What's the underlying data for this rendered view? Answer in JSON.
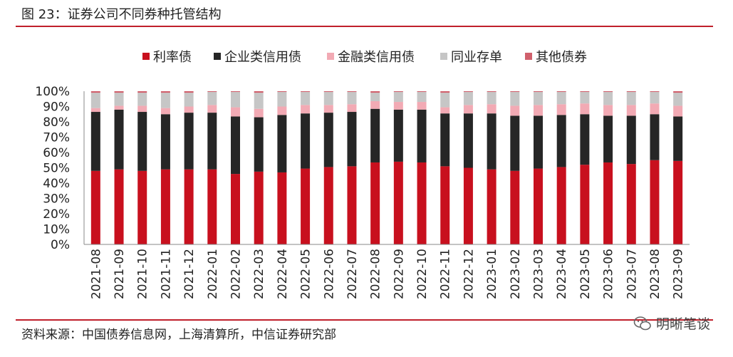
{
  "header": {
    "title": "图 23：证券公司不同券种托管结构"
  },
  "footer": {
    "source": "资料来源：中国债券信息网，上海清算所，中信证券研究部",
    "watermark": "明晰笔谈"
  },
  "colors": {
    "利率债": "#c8101e",
    "企业类信用债": "#262626",
    "金融类信用债": "#f2aab4",
    "同业存单": "#c6c6c6",
    "其他债券": "#d0606c"
  },
  "chart_data": {
    "type": "bar",
    "stacked": true,
    "title": "",
    "xlabel": "",
    "ylabel": "",
    "ylim": [
      0,
      100
    ],
    "y_ticks": [
      "0%",
      "10%",
      "20%",
      "30%",
      "40%",
      "50%",
      "60%",
      "70%",
      "80%",
      "90%",
      "100%"
    ],
    "legend_position": "top",
    "categories": [
      "2021-08",
      "2021-09",
      "2021-10",
      "2021-11",
      "2021-12",
      "2022-01",
      "2022-02",
      "2022-03",
      "2022-04",
      "2022-05",
      "2022-06",
      "2022-07",
      "2022-08",
      "2022-09",
      "2022-10",
      "2022-11",
      "2022-12",
      "2023-01",
      "2023-02",
      "2023-03",
      "2023-04",
      "2023-05",
      "2023-06",
      "2023-07",
      "2023-08",
      "2023-09"
    ],
    "series": [
      {
        "name": "利率债",
        "values": [
          48,
          49,
          48,
          49,
          49,
          49,
          46,
          47.5,
          47,
          49.5,
          50.5,
          51,
          53.5,
          54,
          53.5,
          51,
          50,
          49,
          48,
          49.5,
          50.5,
          52,
          53.5,
          52.5,
          55,
          54.5
        ]
      },
      {
        "name": "企业类信用债",
        "values": [
          38.5,
          39,
          38.5,
          36,
          37,
          37,
          37.5,
          35.5,
          37.5,
          36,
          35.5,
          35.5,
          35,
          34,
          34.5,
          34.5,
          35.5,
          36.5,
          36,
          34.5,
          34,
          33,
          30.5,
          31.5,
          30,
          29
        ]
      },
      {
        "name": "金融类信用债",
        "values": [
          2.5,
          2.5,
          4,
          4,
          4,
          5,
          6,
          5.5,
          5.5,
          5.5,
          5,
          5,
          5,
          5,
          5,
          4,
          5.5,
          6,
          6.5,
          7,
          7,
          7,
          7,
          7,
          7,
          7
        ]
      },
      {
        "name": "同业存单",
        "values": [
          10,
          8.5,
          8.5,
          10,
          9,
          8.5,
          10,
          10.5,
          9.5,
          8.5,
          8.5,
          8,
          5.5,
          6.5,
          6.5,
          9.5,
          8.5,
          8,
          9,
          8.5,
          8,
          7.5,
          8.5,
          8.5,
          7.5,
          8.5
        ]
      },
      {
        "name": "其他债券",
        "values": [
          1,
          1,
          1,
          1,
          1,
          0.5,
          0.5,
          1,
          0.5,
          0.5,
          0.5,
          0.5,
          1,
          0.5,
          0.5,
          1,
          0.5,
          0.5,
          0.5,
          0.5,
          0.5,
          0.5,
          0.5,
          0.5,
          0.5,
          1
        ]
      }
    ]
  }
}
